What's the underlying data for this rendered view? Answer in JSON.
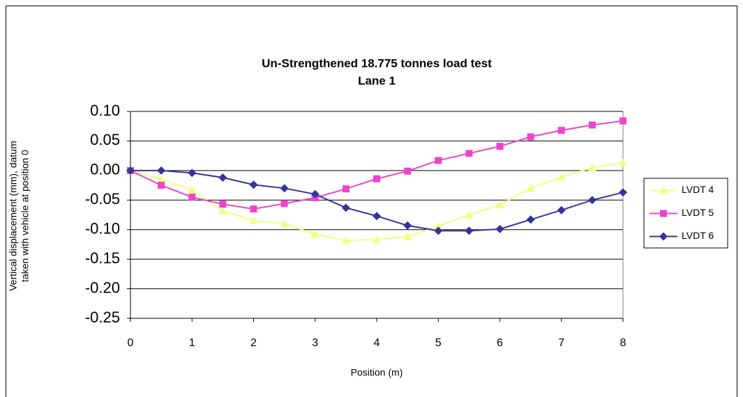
{
  "chart_data": {
    "type": "line",
    "title": "Un-Strengthened 18.775 tonnes load test",
    "subtitle": "Lane 1",
    "xlabel": "Position (m)",
    "ylabel": [
      "Vertical displacement (mm), datum",
      "taken with vehicle at position 0"
    ],
    "x": [
      0,
      0.5,
      1,
      1.5,
      2,
      2.5,
      3,
      3.5,
      4,
      4.5,
      5,
      5.5,
      6,
      6.5,
      7,
      7.5,
      8
    ],
    "series": [
      {
        "name": "LVDT 4",
        "color": "#f0ff80",
        "marker": "triangle",
        "values": [
          0,
          -0.015,
          -0.033,
          -0.068,
          -0.085,
          -0.09,
          -0.108,
          -0.118,
          -0.117,
          -0.112,
          -0.094,
          -0.075,
          -0.058,
          -0.03,
          -0.011,
          0.005,
          0.013
        ]
      },
      {
        "name": "LVDT 5",
        "color": "#ee44cc",
        "marker": "square",
        "values": [
          0,
          -0.025,
          -0.045,
          -0.057,
          -0.065,
          -0.056,
          -0.046,
          -0.031,
          -0.014,
          -0.001,
          0.017,
          0.029,
          0.041,
          0.057,
          0.068,
          0.077,
          0.084
        ]
      },
      {
        "name": "LVDT 6",
        "color": "#333399",
        "marker": "diamond",
        "values": [
          0,
          0,
          -0.004,
          -0.012,
          -0.024,
          -0.03,
          -0.04,
          -0.063,
          -0.077,
          -0.093,
          -0.102,
          -0.102,
          -0.099,
          -0.083,
          -0.067,
          -0.05,
          -0.037
        ]
      }
    ],
    "xlim": [
      0,
      8
    ],
    "xticks": [
      0,
      1,
      2,
      3,
      4,
      5,
      6,
      7,
      8
    ],
    "ylim": [
      -0.25,
      0.1
    ],
    "yticks": [
      {
        "value": 0.1,
        "label": "0.10"
      },
      0.05,
      {
        "value": 0,
        "label": "0.00"
      },
      -0.05,
      {
        "value": -0.1,
        "label": "-0.10"
      },
      -0.15,
      {
        "value": -0.2,
        "label": "-0.20"
      },
      -0.25
    ],
    "grid": true,
    "legend": "right"
  }
}
